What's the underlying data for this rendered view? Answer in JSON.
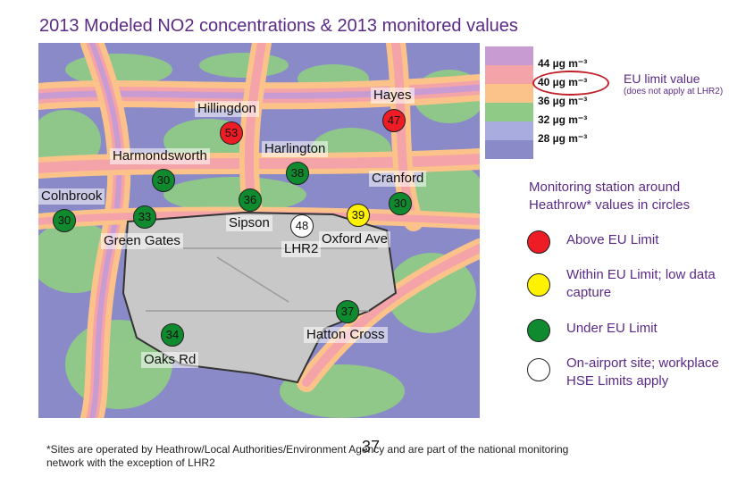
{
  "title": "2013 Modeled NO2 concentrations & 2013 monitored values",
  "colors": {
    "title": "#5b2a86",
    "above_limit": "#ee1c24",
    "within_limit": "#fff200",
    "under_limit": "#0f8a2e",
    "on_airport": "#ffffff",
    "band_44": "#c89bd2",
    "band_40": "#f4a3a8",
    "band_36": "#fbc38a",
    "band_32": "#8fcb86",
    "band_28": "#a9acdf",
    "band_low": "#8a8ac8"
  },
  "scale": {
    "labels": [
      "44 µg m⁻³",
      "40 µg m⁻³",
      "36 µg m⁻³",
      "32 µg m⁻³",
      "28 µg m⁻³"
    ],
    "eu_limit_label": "EU limit value",
    "eu_limit_note": "(does not apply at LHR2)"
  },
  "places": {
    "hayes": "Hayes",
    "hillingdon": "Hillingdon",
    "harlington": "Harlington",
    "harmondsworth": "Harmondsworth",
    "cranford": "Cranford",
    "colnbrook": "Colnbrook",
    "sipson": "Sipson",
    "oxford_ave": "Oxford Ave",
    "green_gates": "Green Gates",
    "lhr2": "LHR2",
    "hatton_cross": "Hatton Cross",
    "oaks_rd": "Oaks Rd"
  },
  "stations": {
    "hayes": {
      "value": "47",
      "status": "above"
    },
    "hillingdon": {
      "value": "53",
      "status": "above"
    },
    "harlington": {
      "value": "38",
      "status": "under"
    },
    "harmondsworth": {
      "value": "30",
      "status": "under"
    },
    "sipson": {
      "value": "36",
      "status": "under"
    },
    "cranford": {
      "value": "30",
      "status": "under"
    },
    "oxford_ave": {
      "value": "39",
      "status": "within"
    },
    "lhr2": {
      "value": "48",
      "status": "on_airport"
    },
    "colnbrook": {
      "value": "30",
      "status": "under"
    },
    "green_gates": {
      "value": "33",
      "status": "under"
    },
    "hatton_cross": {
      "value": "37",
      "status": "under"
    },
    "oaks_rd": {
      "value": "34",
      "status": "under"
    }
  },
  "key": {
    "heading": "Monitoring station around Heathrow* values in circles",
    "above": "Above EU Limit",
    "within": "Within EU Limit; low data capture",
    "under": "Under EU Limit",
    "on_airport": "On-airport site; workplace HSE Limits apply"
  },
  "footnote": "*Sites are operated by Heathrow/Local Authorities/Environment Agency and are part of the national monitoring network with the exception of LHR2",
  "page_number": "37"
}
